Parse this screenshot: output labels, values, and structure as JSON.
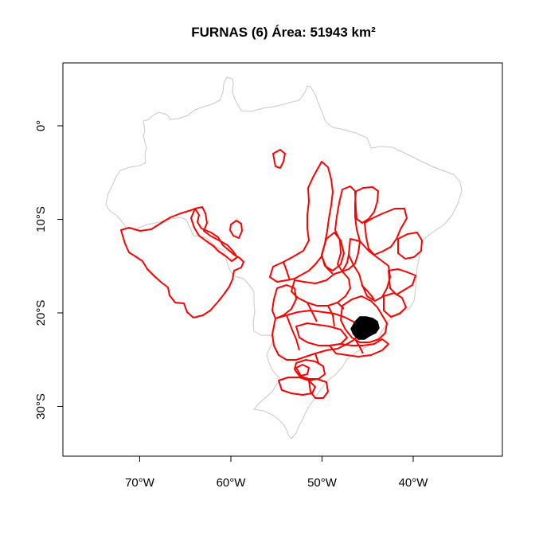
{
  "map": {
    "title": "FURNAS (6) Área: 51943 km²",
    "colors": {
      "country_outline": "#c8c8c8",
      "basin_outlines": "#ff0000",
      "highlighted_area": "#000000",
      "frame": "#000000",
      "background": "#ffffff"
    },
    "x_axis": {
      "ticks": [
        {
          "value": -70,
          "label": "70°W"
        },
        {
          "value": -60,
          "label": "60°W"
        },
        {
          "value": -50,
          "label": "50°W"
        },
        {
          "value": -40,
          "label": "40°W"
        }
      ]
    },
    "y_axis": {
      "ticks": [
        {
          "value": 0,
          "label": "0°"
        },
        {
          "value": -10,
          "label": "10°S"
        },
        {
          "value": -20,
          "label": "20°S"
        },
        {
          "value": -30,
          "label": "30°S"
        }
      ]
    },
    "highlighted_region": {
      "name": "FURNAS (6)",
      "lon": -45.5,
      "lat": -21.2
    }
  }
}
